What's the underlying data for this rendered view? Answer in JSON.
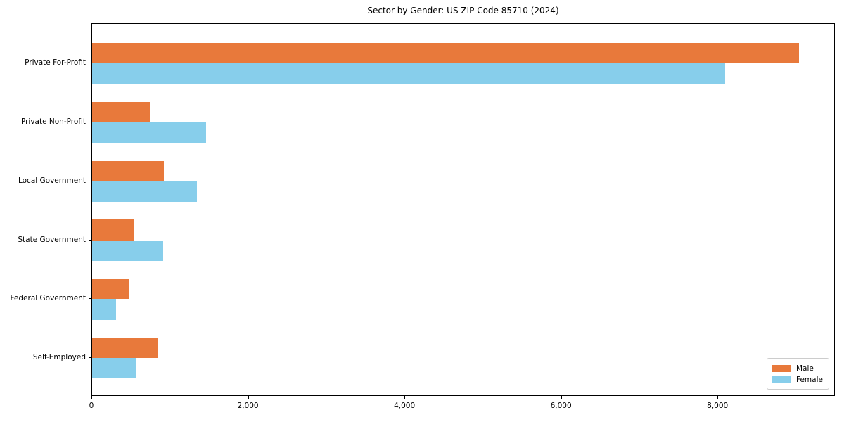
{
  "chart_data": {
    "type": "bar",
    "orientation": "horizontal",
    "title": "Sector by Gender: US ZIP Code 85710 (2024)",
    "categories": [
      "Private For-Profit",
      "Private Non-Profit",
      "Local Government",
      "State Government",
      "Federal Government",
      "Self-Employed"
    ],
    "series": [
      {
        "name": "Male",
        "color": "#E8793B",
        "values": [
          9030,
          740,
          920,
          530,
          470,
          840
        ]
      },
      {
        "name": "Female",
        "color": "#87CEEB",
        "values": [
          8090,
          1460,
          1340,
          910,
          310,
          570
        ]
      }
    ],
    "xlim": [
      0,
      9490
    ],
    "xticks": [
      0,
      2000,
      4000,
      6000,
      8000
    ],
    "xtick_labels": [
      "0",
      "2,000",
      "4,000",
      "6,000",
      "8,000"
    ],
    "xlabel": "",
    "ylabel": "",
    "grid": false,
    "legend_position": "lower right"
  }
}
